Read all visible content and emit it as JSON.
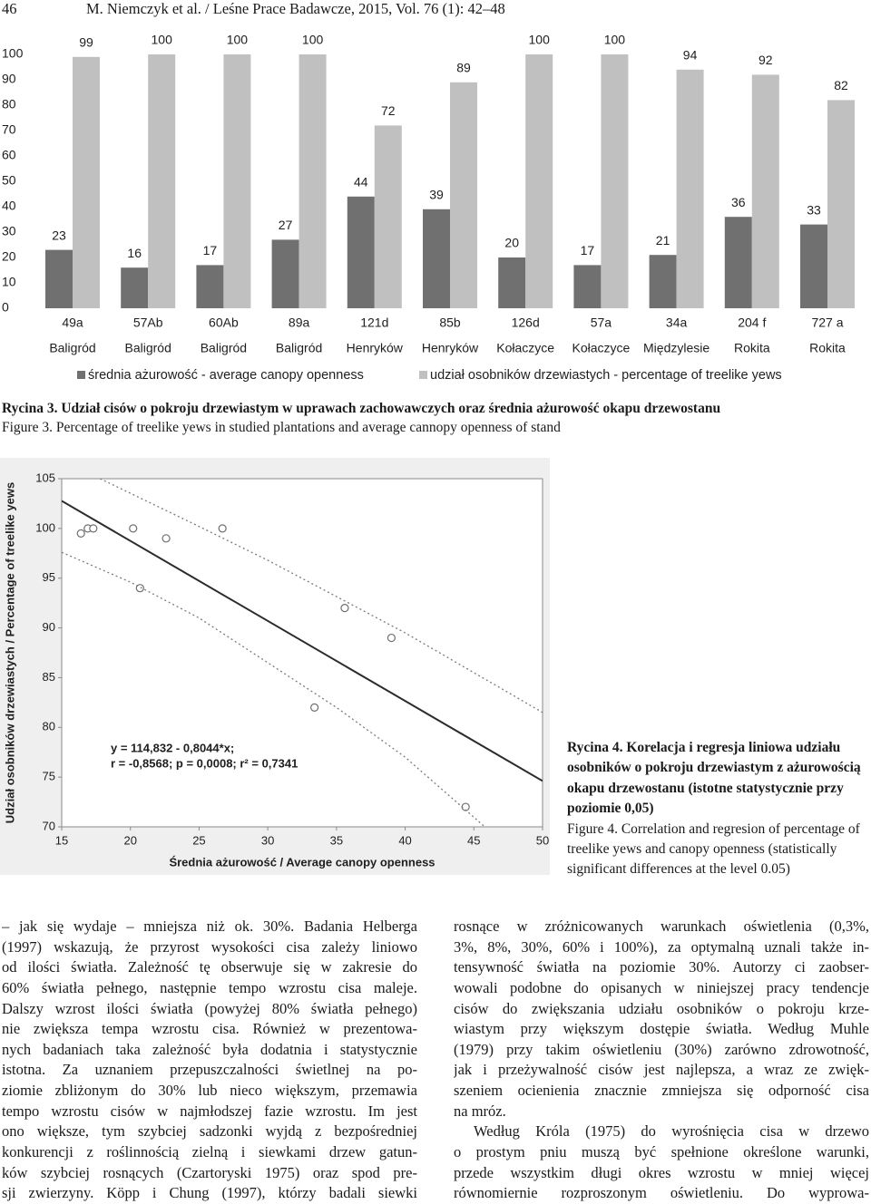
{
  "header": {
    "page": "46",
    "running_title": "M. Niemczyk et al. / Leśne Prace Badawcze, 2015, Vol. 76 (1): 42–48"
  },
  "chart_data": [
    {
      "type": "bar",
      "categories": [
        "49a",
        "57Ab",
        "60Ab",
        "89a",
        "121d",
        "85b",
        "126d",
        "57a",
        "34a",
        "204 f",
        "727 a"
      ],
      "category_sublabels": [
        "Baligród",
        "Baligród",
        "Baligród",
        "Baligród",
        "Henryków",
        "Henryków",
        "Kołaczyce",
        "Kołaczyce",
        "Międzylesie",
        "Rokita",
        "Rokita"
      ],
      "series": [
        {
          "name": "średnia ażurowość - average canopy openness",
          "color": "#707070",
          "values": [
            23,
            16,
            17,
            27,
            44,
            39,
            20,
            17,
            21,
            36,
            33
          ]
        },
        {
          "name": "udział osobników drzewiastych - percentage of treelike yews",
          "color": "#c0c0c0",
          "values": [
            99,
            100,
            100,
            100,
            72,
            89,
            100,
            100,
            94,
            92,
            82
          ]
        }
      ],
      "ylim": [
        0,
        100
      ],
      "yticks": [
        0,
        10,
        20,
        30,
        40,
        50,
        60,
        70,
        80,
        90,
        100
      ],
      "grid": false,
      "data_labels": true,
      "legend": "bottom"
    },
    {
      "type": "scatter",
      "xlabel": "Średnia ażurowość / Average canopy openness",
      "ylabel": "Udział osobników drzewiastych / Percentage of treelike yews",
      "annotations": [
        "y = 114,832 - 0,8044*x;",
        "r = -0,8568; p = 0,0008; r² = 0,7341"
      ],
      "xlim": [
        15,
        50
      ],
      "xticks": [
        15,
        20,
        25,
        30,
        35,
        40,
        45,
        50
      ],
      "ylim": [
        70,
        105
      ],
      "yticks": [
        70,
        75,
        80,
        85,
        90,
        95,
        100,
        105
      ],
      "series": [
        {
          "mark": "circle",
          "color": "#6e6e6e",
          "x": [
            16.4,
            16.9,
            17.3,
            20.2,
            20.7,
            22.6,
            26.7,
            33.4,
            35.6,
            39.0,
            44.4
          ],
          "values": [
            99.5,
            100,
            100,
            100,
            94,
            99,
            100,
            82,
            92,
            89,
            72
          ]
        },
        {
          "mark": "line",
          "dashed": false,
          "color": "#2b2b2b",
          "x": [
            15,
            50
          ],
          "values": [
            102.77,
            74.61
          ]
        },
        {
          "mark": "line",
          "dashed": true,
          "color": "#7a7a7a",
          "x": [
            17.8,
            25,
            30,
            40,
            50
          ],
          "values": [
            105,
            100.2,
            96.8,
            89.5,
            81.5
          ]
        },
        {
          "mark": "line",
          "dashed": true,
          "color": "#7a7a7a",
          "x": [
            15,
            20,
            25,
            30,
            35,
            40,
            45.8
          ],
          "values": [
            97.6,
            94.6,
            91,
            86.5,
            82,
            77,
            70
          ]
        }
      ]
    }
  ],
  "figure_3": {
    "title": "Rycina 3. Udział cisów o pokroju drzewiastym w uprawach zachowawczych oraz średnia ażurowość okapu drzewostanu",
    "title_en": "Figure 3. Percentage of treelike yews in studied plantations and average cannopy openness of stand"
  },
  "figure_4": {
    "title": "Rycina 4. Korelacja i regresja liniowa udziału osobników o pokroju drzewiastym z ażurowością okapu drzewostanu (istotne statystycznie przy poziomie 0,05)",
    "title_en": "Figure 4. Correlation and regresion of percentage of treelike yews and canopy openness (statistically significant differences at the level 0.05)"
  },
  "body": {
    "columns": [
      [
        [
          "– jak się wydaje – mniejsza niż ok. 30%. Badania Helberga",
          "(1997) wskazują, że przyrost wysokości cisa zależy liniowo",
          "od ilości światła. Zależność tę obserwuje się w zakresie do",
          "60% światła pełnego, następnie tempo wzrostu cisa maleje.",
          "Dalszy wzrost ilości światła (powyżej 80% światła pełnego)",
          "nie zwiększa tempa wzrostu cisa. Również w prezentowa-",
          "nych badaniach taka zależność była dodatnia i statystycznie",
          "istotna. Za uznaniem przepuszczalności świetlnej na po-",
          "ziomie zbliżonym do 30% lub nieco większym, przemawia",
          "tempo wzrostu cisów w najmłodszej fazie wzrostu. Im jest",
          "ono większe, tym szybciej sadzonki wyjdą z bezpośredniej",
          "konkurencji z roślinnością zielną i siewkami drzew gatun-",
          "ków szybciej rosnących (Czartoryski 1975) oraz spod pre-",
          "sji zwierzyny. Köpp i Chung (1997), którzy badali siewki"
        ]
      ],
      [
        [
          "rosnące w zróżnicowanych warunkach oświetlenia (0,3%,",
          "3%, 8%, 30%, 60% i 100%), za optymalną uznali także in-",
          "tensywność światła na poziomie 30%. Autorzy ci zaobser-",
          "wowali podobne do opisanych w niniejszej pracy tendencje",
          "cisów do zwiększania udziału osobników o pokroju krze-",
          "wiastym przy większym dostępie światła. Według Muhle",
          "(1979) przy takim oświetleniu (30%) zarówno zdrowotność,",
          "jak i przeżywalność cisów jest najlepsza, a wraz ze zwięk-",
          "szeniem ocienienia znacznie zmniejsza się odporność cisa",
          "na mróz."
        ],
        [
          "Według Króla (1975) do wyrośnięcia cisa w drzewo",
          "o prostym pniu muszą być spełnione określone warunki,",
          "przede wszystkim długi okres wzrostu w mniej więcej",
          "równomiernie rozproszonym oświetleniu. Do wyprowa-"
        ]
      ]
    ]
  }
}
